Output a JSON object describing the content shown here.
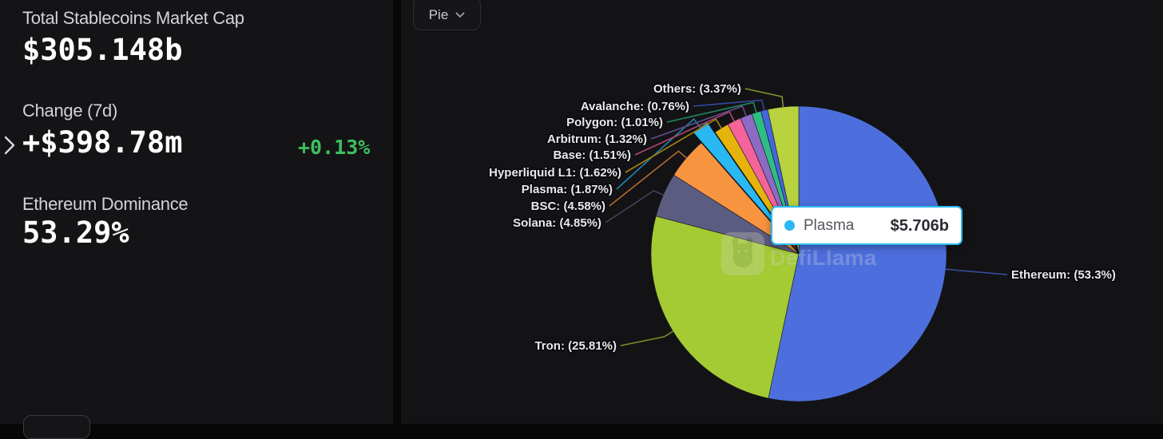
{
  "stats_panel": {
    "market_cap": {
      "label": "Total Stablecoins Market Cap",
      "value": "$305.148b"
    },
    "change_7d": {
      "label": "Change (7d)",
      "value": "+$398.78m",
      "pct": "+0.13%"
    },
    "eth_dominance": {
      "label": "Ethereum Dominance",
      "value": "53.29%"
    }
  },
  "chart_controls": {
    "chart_type": "Pie"
  },
  "tooltip": {
    "series": "Plasma",
    "value": "$5.706b",
    "color": "#29b8f2"
  },
  "watermark": "DefiLlama",
  "colors": {
    "positive": "#3dc05e",
    "accent": "#29b8f2"
  },
  "chart_data": {
    "type": "pie",
    "title": "",
    "unit": "%",
    "legend": "none",
    "label_format": "{name}: ({pct}%)",
    "exploded_slice": "Plasma",
    "series": [
      {
        "name": "Ethereum",
        "pct": 53.3,
        "color": "#4d6fde"
      },
      {
        "name": "Tron",
        "pct": 25.81,
        "color": "#a4ca34"
      },
      {
        "name": "Solana",
        "pct": 4.85,
        "color": "#5c5b80"
      },
      {
        "name": "BSC",
        "pct": 4.58,
        "color": "#f79440"
      },
      {
        "name": "Plasma",
        "pct": 1.87,
        "color": "#29b8f2",
        "exploded": true,
        "value_label": "$5.706b"
      },
      {
        "name": "Hyperliquid L1",
        "pct": 1.62,
        "color": "#e5b30c"
      },
      {
        "name": "Base",
        "pct": 1.51,
        "color": "#f4639a"
      },
      {
        "name": "Arbitrum",
        "pct": 1.32,
        "color": "#8d6ac3"
      },
      {
        "name": "Polygon",
        "pct": 1.01,
        "color": "#2ebd85"
      },
      {
        "name": "Avalanche",
        "pct": 0.76,
        "color": "#4566dd"
      },
      {
        "name": "Others",
        "pct": 3.37,
        "color": "#b9d23f"
      }
    ]
  }
}
